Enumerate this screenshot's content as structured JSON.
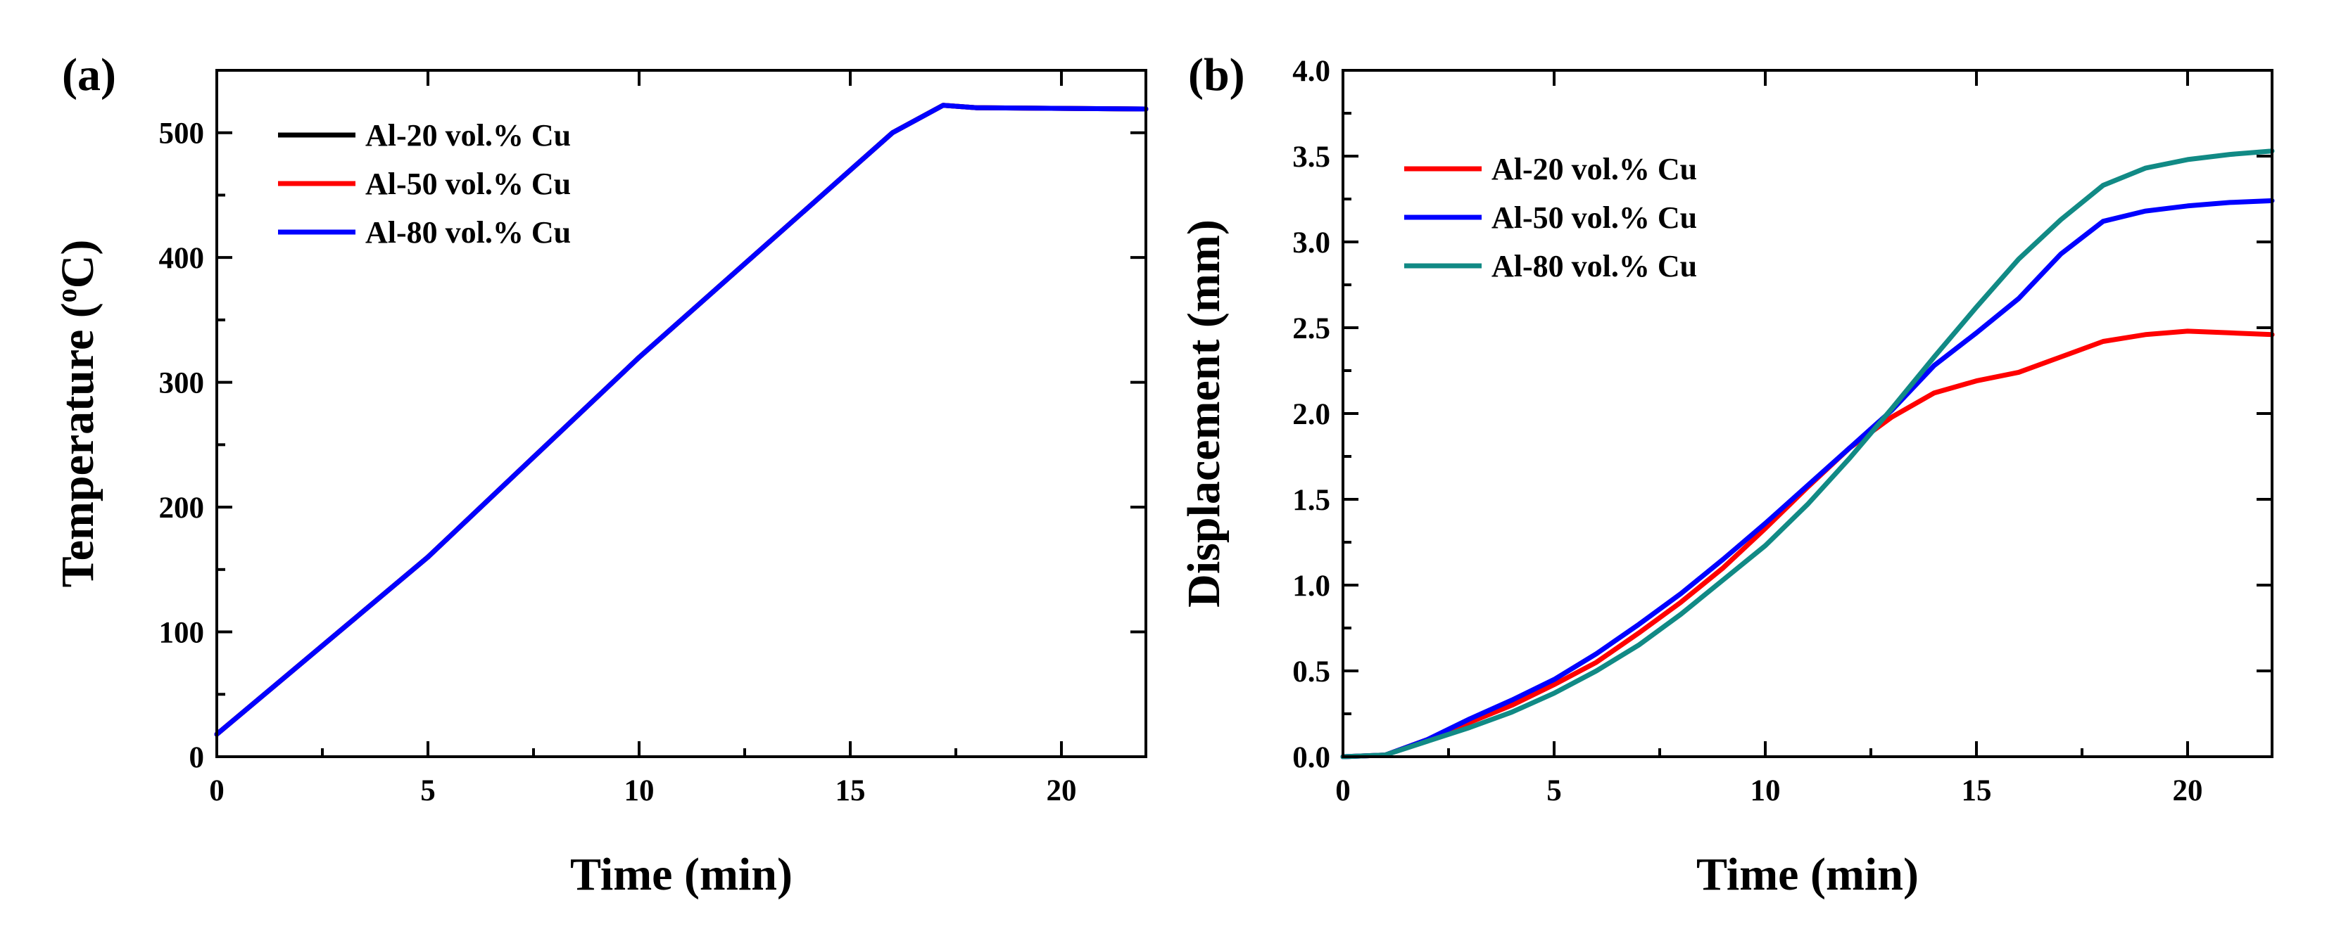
{
  "chart_data": [
    {
      "type": "line",
      "panel_label": "(a)",
      "xlabel": "Time (min)",
      "ylabel_main": "Temperature (",
      "ylabel_sup": "o",
      "ylabel_tail": "C)",
      "xlim": [
        0,
        22
      ],
      "ylim": [
        0,
        550
      ],
      "xticks": [
        0,
        5,
        10,
        15,
        20
      ],
      "yticks": [
        0,
        100,
        200,
        300,
        400,
        500
      ],
      "legend_position": "top-left",
      "series": [
        {
          "name": "Al-20 vol.% Cu",
          "color": "#000000",
          "points": [
            [
              0,
              18
            ],
            [
              5,
              160
            ],
            [
              10,
              320
            ],
            [
              14,
              440
            ],
            [
              16,
              500
            ],
            [
              17.2,
              522
            ],
            [
              18,
              520
            ],
            [
              22,
              519
            ]
          ]
        },
        {
          "name": "Al-50 vol.% Cu",
          "color": "#ff0000",
          "points": [
            [
              0,
              18
            ],
            [
              5,
              160
            ],
            [
              10,
              320
            ],
            [
              14,
              440
            ],
            [
              16,
              500
            ],
            [
              17.2,
              522
            ],
            [
              18,
              520
            ],
            [
              22,
              519
            ]
          ]
        },
        {
          "name": "Al-80 vol.% Cu",
          "color": "#0000ff",
          "points": [
            [
              0,
              18
            ],
            [
              5,
              160
            ],
            [
              10,
              320
            ],
            [
              14,
              440
            ],
            [
              16,
              500
            ],
            [
              17.2,
              522
            ],
            [
              18,
              520
            ],
            [
              22,
              519
            ]
          ]
        }
      ]
    },
    {
      "type": "line",
      "panel_label": "(b)",
      "xlabel": "Time (min)",
      "ylabel": "Displacement (mm)",
      "xlim": [
        0,
        22
      ],
      "ylim": [
        0,
        4
      ],
      "xticks": [
        0,
        5,
        10,
        15,
        20
      ],
      "ytick_labels": [
        "0.0",
        "0.5",
        "1.0",
        "1.5",
        "2.0",
        "2.5",
        "3.0",
        "3.5",
        "4.0"
      ],
      "legend_position": "top-left",
      "series": [
        {
          "name": "Al-20 vol.% Cu",
          "color": "#ff0000",
          "points": [
            [
              0,
              0
            ],
            [
              1,
              0.01
            ],
            [
              2,
              0.1
            ],
            [
              3,
              0.2
            ],
            [
              4,
              0.3
            ],
            [
              5,
              0.42
            ],
            [
              6,
              0.55
            ],
            [
              7,
              0.72
            ],
            [
              8,
              0.9
            ],
            [
              9,
              1.1
            ],
            [
              10,
              1.33
            ],
            [
              11,
              1.57
            ],
            [
              12,
              1.8
            ],
            [
              13,
              1.98
            ],
            [
              14,
              2.12
            ],
            [
              15,
              2.19
            ],
            [
              16,
              2.24
            ],
            [
              17,
              2.33
            ],
            [
              18,
              2.42
            ],
            [
              19,
              2.46
            ],
            [
              20,
              2.48
            ],
            [
              21,
              2.47
            ],
            [
              22,
              2.46
            ]
          ]
        },
        {
          "name": "Al-50 vol.% Cu",
          "color": "#0000ff",
          "points": [
            [
              0,
              0
            ],
            [
              1,
              0.01
            ],
            [
              2,
              0.1
            ],
            [
              3,
              0.22
            ],
            [
              4,
              0.33
            ],
            [
              5,
              0.45
            ],
            [
              6,
              0.6
            ],
            [
              7,
              0.77
            ],
            [
              8,
              0.95
            ],
            [
              9,
              1.15
            ],
            [
              10,
              1.36
            ],
            [
              11,
              1.58
            ],
            [
              12,
              1.8
            ],
            [
              13,
              2.02
            ],
            [
              14,
              2.28
            ],
            [
              15,
              2.47
            ],
            [
              16,
              2.67
            ],
            [
              17,
              2.93
            ],
            [
              18,
              3.12
            ],
            [
              19,
              3.18
            ],
            [
              20,
              3.21
            ],
            [
              21,
              3.23
            ],
            [
              22,
              3.24
            ]
          ]
        },
        {
          "name": "Al-80 vol.% Cu",
          "color": "#118a85",
          "points": [
            [
              0,
              0
            ],
            [
              1,
              0.01
            ],
            [
              2,
              0.09
            ],
            [
              3,
              0.17
            ],
            [
              4,
              0.26
            ],
            [
              5,
              0.37
            ],
            [
              6,
              0.5
            ],
            [
              7,
              0.65
            ],
            [
              8,
              0.83
            ],
            [
              9,
              1.03
            ],
            [
              10,
              1.23
            ],
            [
              11,
              1.47
            ],
            [
              12,
              1.74
            ],
            [
              13,
              2.03
            ],
            [
              14,
              2.33
            ],
            [
              15,
              2.62
            ],
            [
              16,
              2.9
            ],
            [
              17,
              3.13
            ],
            [
              18,
              3.33
            ],
            [
              19,
              3.43
            ],
            [
              20,
              3.48
            ],
            [
              21,
              3.51
            ],
            [
              22,
              3.53
            ]
          ]
        }
      ]
    }
  ]
}
